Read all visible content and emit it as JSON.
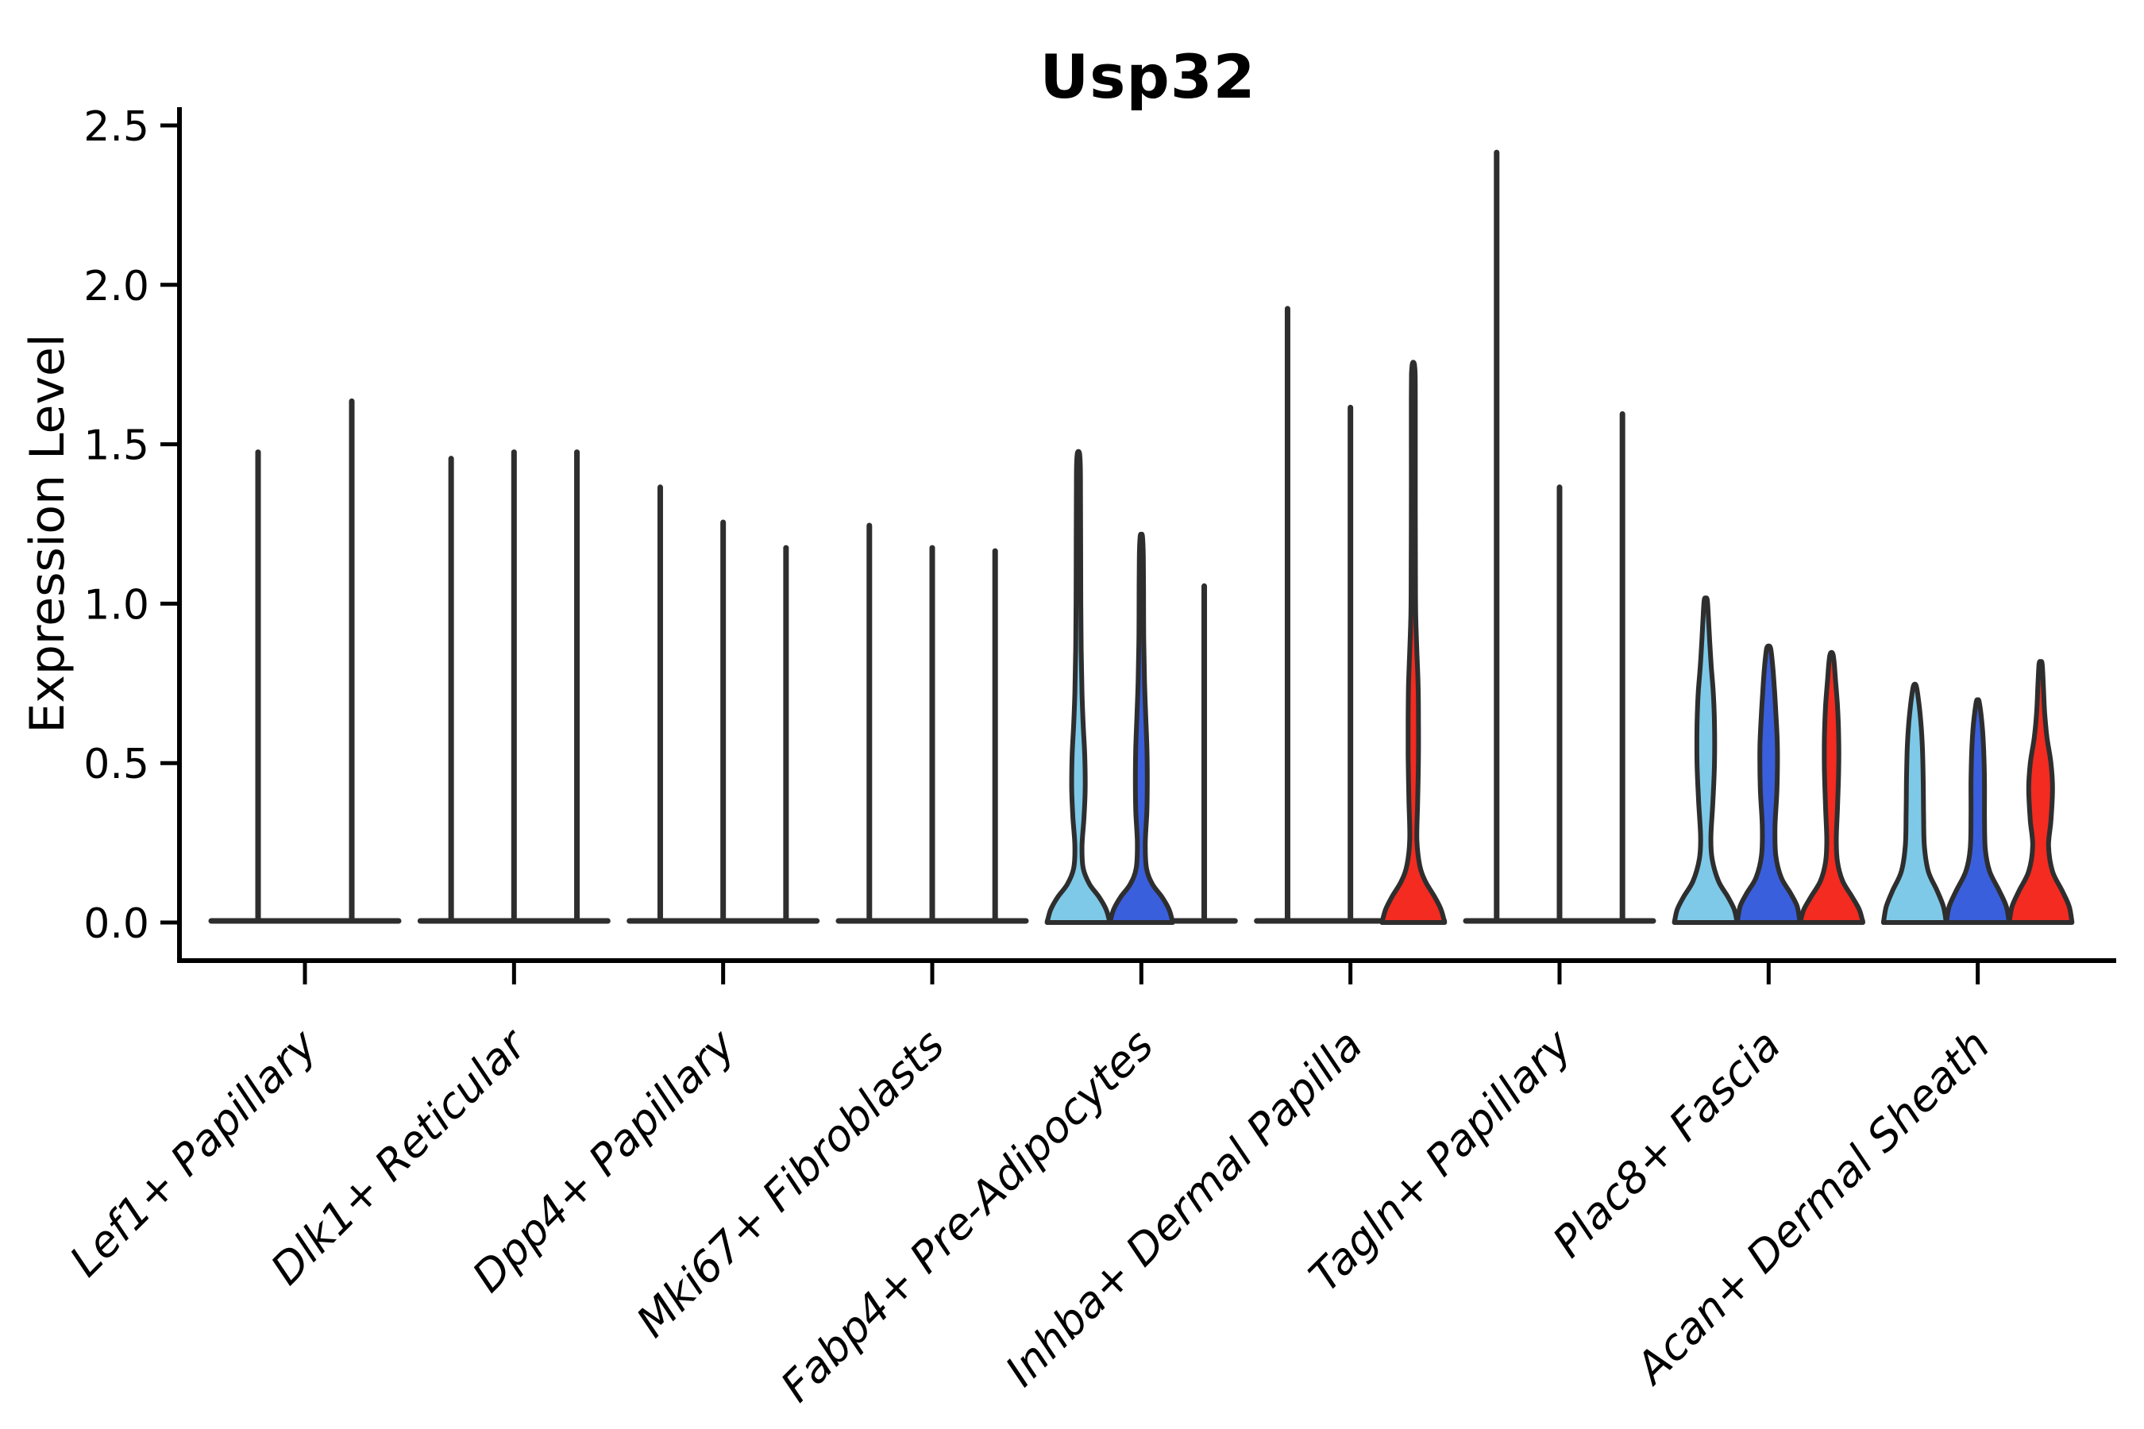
{
  "title": "Usp32",
  "y_axis": {
    "label": "Expression Level",
    "ticks": [
      "0.0",
      "0.5",
      "1.0",
      "1.5",
      "2.0",
      "2.5"
    ],
    "tick_values": [
      0,
      0.5,
      1.0,
      1.5,
      2.0,
      2.5
    ],
    "range": [
      0,
      2.5
    ]
  },
  "chart_data": {
    "type": "violin",
    "title": "Usp32",
    "ylabel": "Expression Level",
    "ylim": [
      0,
      2.5
    ],
    "grid": "off",
    "legend": "none",
    "palette": {
      "light_blue": "#7EC9E8",
      "blue": "#3A5FDD",
      "red": "#F32B20",
      "outline": "#2E2E2E",
      "axis": "#000000"
    },
    "categories": [
      "Lef1+ Papillary",
      "Dlk1+ Reticular",
      "Dpp4+ Papillary",
      "Mki67+ Fibroblasts",
      "Fabp4+ Pre-Adipocytes",
      "Inhba+ Dermal Papilla",
      "Tagln+ Papillary",
      "Plac8+ Fascia",
      "Acan+ Dermal Sheath"
    ],
    "groups": [
      {
        "label": "Lef1+ Papillary",
        "violins": [
          {
            "color": "light_blue",
            "type": "spike",
            "max": 1.48
          },
          {
            "color": "blue",
            "type": "spike",
            "max": 1.64
          }
        ]
      },
      {
        "label": "Dlk1+ Reticular",
        "violins": [
          {
            "color": "light_blue",
            "type": "spike",
            "max": 1.46
          },
          {
            "color": "blue",
            "type": "spike",
            "max": 1.48
          },
          {
            "color": "red",
            "type": "spike",
            "max": 1.48
          }
        ]
      },
      {
        "label": "Dpp4+ Papillary",
        "violins": [
          {
            "color": "light_blue",
            "type": "spike",
            "max": 1.37
          },
          {
            "color": "blue",
            "type": "spike",
            "max": 1.26
          },
          {
            "color": "red",
            "type": "spike",
            "max": 1.18
          }
        ]
      },
      {
        "label": "Mki67+ Fibroblasts",
        "violins": [
          {
            "color": "light_blue",
            "type": "spike",
            "max": 1.25
          },
          {
            "color": "blue",
            "type": "spike",
            "max": 1.18
          },
          {
            "color": "red",
            "type": "spike",
            "max": 1.17
          }
        ]
      },
      {
        "label": "Fabp4+ Pre-Adipocytes",
        "violins": [
          {
            "color": "light_blue",
            "type": "body",
            "max": 1.47,
            "profile": [
              [
                0,
                39.5
              ],
              [
                0.04,
                35
              ],
              [
                0.08,
                26
              ],
              [
                0.12,
                14
              ],
              [
                0.17,
                6
              ],
              [
                0.24,
                4.5
              ],
              [
                0.33,
                7
              ],
              [
                0.42,
                8.5
              ],
              [
                0.52,
                8
              ],
              [
                0.62,
                6
              ],
              [
                0.72,
                4.5
              ],
              [
                0.85,
                3.5
              ],
              [
                1.0,
                3
              ],
              [
                1.2,
                2.8
              ],
              [
                1.35,
                2.6
              ],
              [
                1.43,
                2.4
              ],
              [
                1.47,
                1.5
              ]
            ]
          },
          {
            "color": "blue",
            "type": "body",
            "max": 1.21,
            "profile": [
              [
                0,
                39.5
              ],
              [
                0.04,
                35
              ],
              [
                0.08,
                26
              ],
              [
                0.12,
                14
              ],
              [
                0.17,
                6.5
              ],
              [
                0.25,
                5
              ],
              [
                0.35,
                7
              ],
              [
                0.45,
                7.5
              ],
              [
                0.55,
                7
              ],
              [
                0.65,
                5.5
              ],
              [
                0.76,
                4
              ],
              [
                0.9,
                3
              ],
              [
                1.05,
                2.8
              ],
              [
                1.15,
                2.5
              ],
              [
                1.21,
                1.5
              ]
            ]
          },
          {
            "color": "red",
            "type": "spike",
            "max": 1.06
          }
        ]
      },
      {
        "label": "Inhba+ Dermal Papilla",
        "violins": [
          {
            "color": "light_blue",
            "type": "spike",
            "max": 1.93
          },
          {
            "color": "blue",
            "type": "spike",
            "max": 1.62
          },
          {
            "color": "red",
            "type": "body",
            "max": 1.75,
            "profile": [
              [
                0,
                39.5
              ],
              [
                0.04,
                35
              ],
              [
                0.08,
                27
              ],
              [
                0.13,
                15
              ],
              [
                0.18,
                8
              ],
              [
                0.26,
                4.5
              ],
              [
                0.38,
                5.5
              ],
              [
                0.52,
                6.5
              ],
              [
                0.64,
                6.5
              ],
              [
                0.75,
                6
              ],
              [
                0.85,
                4.5
              ],
              [
                0.97,
                3
              ],
              [
                1.1,
                2.7
              ],
              [
                1.3,
                2.5
              ],
              [
                1.5,
                2.5
              ],
              [
                1.65,
                2.5
              ],
              [
                1.72,
                2.3
              ],
              [
                1.75,
                1.4
              ]
            ]
          }
        ]
      },
      {
        "label": "Tagln+ Papillary",
        "violins": [
          {
            "color": "light_blue",
            "type": "spike",
            "max": 2.42
          },
          {
            "color": "blue",
            "type": "spike",
            "max": 1.37
          },
          {
            "color": "red",
            "type": "spike",
            "max": 1.6
          }
        ]
      },
      {
        "label": "Plac8+ Fascia",
        "violins": [
          {
            "color": "light_blue",
            "type": "body",
            "max": 1.01,
            "profile": [
              [
                0,
                39.5
              ],
              [
                0.04,
                36
              ],
              [
                0.08,
                28
              ],
              [
                0.13,
                16
              ],
              [
                0.2,
                8
              ],
              [
                0.27,
                6.5
              ],
              [
                0.38,
                9
              ],
              [
                0.5,
                11
              ],
              [
                0.62,
                11
              ],
              [
                0.72,
                9.5
              ],
              [
                0.8,
                7
              ],
              [
                0.88,
                5
              ],
              [
                0.95,
                3.5
              ],
              [
                1.01,
                2
              ]
            ]
          },
          {
            "color": "blue",
            "type": "body",
            "max": 0.86,
            "profile": [
              [
                0,
                39.5
              ],
              [
                0.05,
                36
              ],
              [
                0.09,
                28
              ],
              [
                0.14,
                16
              ],
              [
                0.21,
                9
              ],
              [
                0.3,
                8
              ],
              [
                0.42,
                10.5
              ],
              [
                0.55,
                11
              ],
              [
                0.66,
                9
              ],
              [
                0.76,
                6.5
              ],
              [
                0.82,
                4.5
              ],
              [
                0.86,
                2.5
              ]
            ]
          },
          {
            "color": "red",
            "type": "body",
            "max": 0.84,
            "profile": [
              [
                0,
                39.5
              ],
              [
                0.04,
                35
              ],
              [
                0.08,
                26
              ],
              [
                0.13,
                14
              ],
              [
                0.19,
                7.5
              ],
              [
                0.26,
                6
              ],
              [
                0.36,
                7.5
              ],
              [
                0.48,
                9
              ],
              [
                0.58,
                9
              ],
              [
                0.68,
                7.5
              ],
              [
                0.76,
                5
              ],
              [
                0.81,
                3.5
              ],
              [
                0.84,
                2
              ]
            ]
          }
        ]
      },
      {
        "label": "Acan+ Dermal Sheath",
        "violins": [
          {
            "color": "light_blue",
            "type": "body",
            "max": 0.74,
            "profile": [
              [
                0,
                39.5
              ],
              [
                0.05,
                36
              ],
              [
                0.1,
                28
              ],
              [
                0.16,
                17
              ],
              [
                0.24,
                12
              ],
              [
                0.34,
                11
              ],
              [
                0.45,
                10.5
              ],
              [
                0.55,
                9.5
              ],
              [
                0.63,
                7.5
              ],
              [
                0.7,
                4.5
              ],
              [
                0.74,
                2
              ]
            ]
          },
          {
            "color": "blue",
            "type": "body",
            "max": 0.69,
            "profile": [
              [
                0,
                39.5
              ],
              [
                0.05,
                36
              ],
              [
                0.1,
                27
              ],
              [
                0.16,
                15
              ],
              [
                0.23,
                9.5
              ],
              [
                0.33,
                8.5
              ],
              [
                0.44,
                8.5
              ],
              [
                0.54,
                7.5
              ],
              [
                0.62,
                5.5
              ],
              [
                0.69,
                2
              ]
            ]
          },
          {
            "color": "red",
            "type": "body",
            "max": 0.81,
            "profile": [
              [
                0,
                39.5
              ],
              [
                0.05,
                36
              ],
              [
                0.1,
                27
              ],
              [
                0.16,
                15
              ],
              [
                0.24,
                10
              ],
              [
                0.32,
                13
              ],
              [
                0.42,
                15
              ],
              [
                0.5,
                13
              ],
              [
                0.58,
                8
              ],
              [
                0.66,
                5
              ],
              [
                0.74,
                3.5
              ],
              [
                0.81,
                2
              ]
            ]
          }
        ]
      }
    ]
  }
}
